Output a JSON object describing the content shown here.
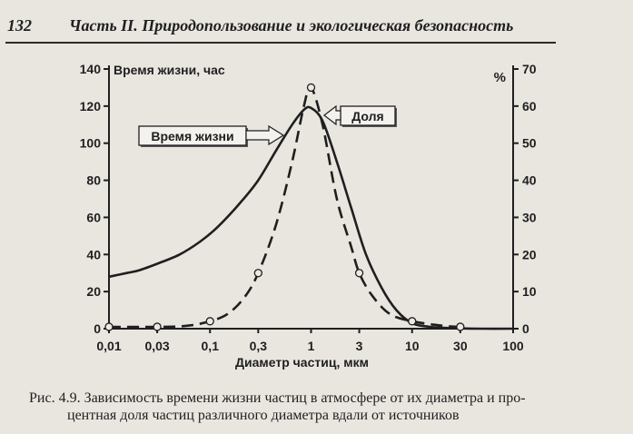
{
  "page_header": {
    "page_number": "132",
    "title": "Часть II. Природопользование и экологическая безопасность"
  },
  "caption": {
    "line1": "Рис. 4.9. Зависимость времени жизни частиц в атмосфере от их диаметра и про-",
    "line2": "центная доля частиц различного диаметра вдали от источников"
  },
  "chart_data": {
    "type": "line",
    "xlabel": "Диаметр частиц, мкм",
    "x_scale": "log",
    "x_ticks": [
      0.01,
      0.03,
      0.1,
      0.3,
      1,
      3,
      10,
      30,
      100
    ],
    "x_tick_labels": [
      "0,01",
      "0,03",
      "0,1",
      "0,3",
      "1",
      "3",
      "10",
      "30",
      "100"
    ],
    "y_left": {
      "label": "Время жизни, час",
      "lim": [
        0,
        140
      ],
      "ticks": [
        0,
        20,
        40,
        60,
        80,
        100,
        120,
        140
      ]
    },
    "y_right": {
      "label": "%",
      "lim": [
        0,
        70
      ],
      "ticks": [
        0,
        10,
        20,
        30,
        40,
        50,
        60,
        70
      ]
    },
    "grid": false,
    "series": [
      {
        "name": "Время жизни",
        "axis": "left",
        "style": "solid",
        "x": [
          0.01,
          0.015,
          0.02,
          0.03,
          0.05,
          0.08,
          0.12,
          0.2,
          0.3,
          0.45,
          0.65,
          0.85,
          1.0,
          1.3,
          1.8,
          2.5,
          3.5,
          5,
          7,
          10,
          15,
          25,
          50,
          100
        ],
        "values": [
          28,
          30,
          31.5,
          35,
          40,
          47,
          55,
          68,
          80,
          96,
          110,
          118,
          119,
          112,
          90,
          65,
          40,
          22,
          10,
          3,
          1,
          0.3,
          0,
          0
        ]
      },
      {
        "name": "Доля",
        "axis": "right",
        "style": "dashed",
        "markers": {
          "x": [
            0.01,
            0.03,
            0.1,
            0.3,
            1,
            3,
            10,
            30
          ],
          "values": [
            0.5,
            0.5,
            2,
            15,
            65,
            15,
            2,
            0.5
          ]
        },
        "x": [
          0.01,
          0.03,
          0.06,
          0.1,
          0.15,
          0.22,
          0.3,
          0.45,
          0.65,
          0.85,
          1.0,
          1.3,
          1.8,
          2.5,
          3.0,
          4,
          6,
          10,
          20,
          30
        ],
        "values": [
          0.5,
          0.5,
          0.8,
          2,
          4,
          8.5,
          15,
          28,
          45,
          60,
          65,
          55,
          35,
          22,
          15,
          9,
          4,
          2,
          0.8,
          0.5
        ]
      }
    ],
    "annotations": [
      "Время жизни",
      "Доля"
    ]
  }
}
